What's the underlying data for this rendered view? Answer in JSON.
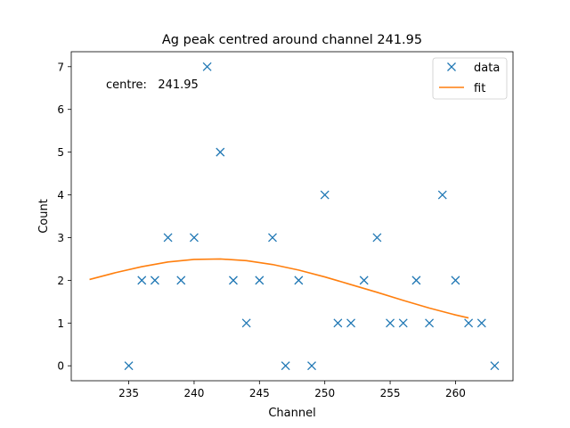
{
  "chart_data": {
    "type": "scatter",
    "title": "Ag peak centred around channel 241.95",
    "xlabel": "Channel",
    "ylabel": "Count",
    "xlim": [
      230.6,
      264.4
    ],
    "ylim": [
      -0.35,
      7.35
    ],
    "xticks": [
      235,
      240,
      245,
      250,
      255,
      260
    ],
    "yticks": [
      0,
      1,
      2,
      3,
      4,
      5,
      6,
      7
    ],
    "grid": false,
    "legend_position": "top-right",
    "annotation": "centre:   241.95",
    "series": [
      {
        "name": "data",
        "kind": "marker",
        "marker": "x",
        "color": "#1f77b4",
        "x": [
          235,
          236,
          237,
          238,
          239,
          240,
          241,
          242,
          243,
          244,
          245,
          246,
          247,
          248,
          249,
          250,
          251,
          252,
          253,
          254,
          255,
          256,
          257,
          258,
          259,
          260,
          261,
          262,
          263
        ],
        "y": [
          0,
          2,
          2,
          3,
          2,
          3,
          7,
          5,
          2,
          1,
          2,
          3,
          0,
          2,
          0,
          4,
          1,
          1,
          2,
          3,
          1,
          1,
          2,
          1,
          4,
          2,
          1,
          1,
          0
        ]
      },
      {
        "name": "fit",
        "kind": "line",
        "color": "#ff7f0e",
        "x": [
          232,
          234,
          236,
          238,
          240,
          242,
          244,
          246,
          248,
          250,
          252,
          254,
          256,
          258,
          260,
          261
        ],
        "y": [
          2.02,
          2.18,
          2.32,
          2.43,
          2.49,
          2.5,
          2.46,
          2.37,
          2.24,
          2.08,
          1.9,
          1.72,
          1.53,
          1.35,
          1.19,
          1.12
        ]
      }
    ]
  }
}
